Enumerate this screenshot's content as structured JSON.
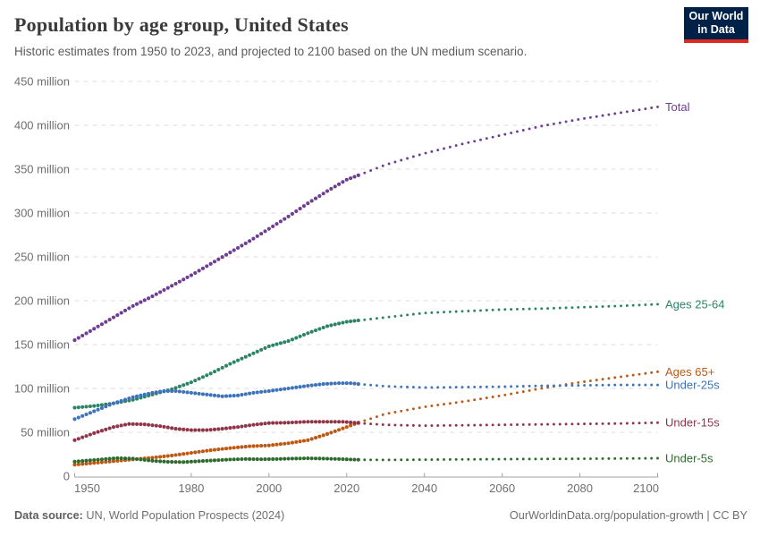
{
  "header": {
    "title": "Population by age group, United States",
    "subtitle": "Historic estimates from 1950 to 2023, and projected to 2100 based on the UN medium scenario."
  },
  "logo": {
    "line1": "Our World",
    "line2": "in Data",
    "bg_color": "#002147",
    "accent_color": "#dc2a20"
  },
  "footer": {
    "source_label": "Data source:",
    "source_value": " UN, World Population Prospects (2024)",
    "right_text": "OurWorldinData.org/population-growth | CC BY"
  },
  "colors": {
    "grid": "#dcdcdc",
    "axis": "#a3a3a3",
    "tick_text": "#6e6e6e"
  },
  "chart_data": {
    "type": "line",
    "title": "Population by age group, United States",
    "subtitle": "Historic estimates from 1950 to 2023, and projected to 2100 based on the UN medium scenario.",
    "unit": "million people",
    "x_range": [
      1950,
      2100
    ],
    "y_range": [
      0,
      450
    ],
    "x_ticks": [
      1950,
      1980,
      2000,
      2020,
      2040,
      2060,
      2080,
      2100
    ],
    "y_ticks": [
      0,
      50,
      100,
      150,
      200,
      250,
      300,
      350,
      400,
      450
    ],
    "y_tick_suffix": " million",
    "grid": true,
    "legend_position": "right-edge-labels",
    "projection_start_year": 2023,
    "line_style": {
      "historic": "dense-dots",
      "projection": "sparse-dots"
    },
    "series": [
      {
        "name": "Total",
        "color": "#6d3e91",
        "historic": [
          [
            1950,
            155
          ],
          [
            1955,
            168
          ],
          [
            1960,
            181
          ],
          [
            1965,
            194
          ],
          [
            1970,
            205
          ],
          [
            1975,
            217
          ],
          [
            1980,
            229
          ],
          [
            1985,
            242
          ],
          [
            1990,
            255
          ],
          [
            1995,
            268
          ],
          [
            2000,
            282
          ],
          [
            2005,
            296
          ],
          [
            2010,
            311
          ],
          [
            2015,
            325
          ],
          [
            2020,
            338
          ],
          [
            2023,
            343
          ]
        ],
        "projection": [
          [
            2023,
            343
          ],
          [
            2030,
            355
          ],
          [
            2040,
            368
          ],
          [
            2050,
            379
          ],
          [
            2060,
            389
          ],
          [
            2070,
            399
          ],
          [
            2080,
            407
          ],
          [
            2090,
            414
          ],
          [
            2100,
            421
          ]
        ]
      },
      {
        "name": "Ages 25-64",
        "color": "#2c8465",
        "historic": [
          [
            1950,
            78
          ],
          [
            1955,
            80
          ],
          [
            1960,
            83
          ],
          [
            1965,
            87
          ],
          [
            1970,
            93
          ],
          [
            1975,
            99
          ],
          [
            1980,
            107
          ],
          [
            1985,
            117
          ],
          [
            1990,
            128
          ],
          [
            1995,
            138
          ],
          [
            2000,
            148
          ],
          [
            2005,
            154
          ],
          [
            2010,
            163
          ],
          [
            2015,
            171
          ],
          [
            2020,
            176
          ],
          [
            2023,
            177.5
          ]
        ],
        "projection": [
          [
            2023,
            177.5
          ],
          [
            2030,
            181
          ],
          [
            2040,
            186
          ],
          [
            2050,
            188
          ],
          [
            2060,
            190
          ],
          [
            2070,
            191
          ],
          [
            2080,
            192.5
          ],
          [
            2090,
            194
          ],
          [
            2100,
            196
          ]
        ]
      },
      {
        "name": "Ages 65+",
        "color": "#be5915",
        "historic": [
          [
            1950,
            13
          ],
          [
            1955,
            15
          ],
          [
            1960,
            17
          ],
          [
            1965,
            19
          ],
          [
            1970,
            21
          ],
          [
            1975,
            23.5
          ],
          [
            1980,
            26.5
          ],
          [
            1985,
            29.5
          ],
          [
            1990,
            32
          ],
          [
            1995,
            34
          ],
          [
            2000,
            35
          ],
          [
            2005,
            37.5
          ],
          [
            2010,
            41
          ],
          [
            2015,
            48
          ],
          [
            2020,
            56
          ],
          [
            2023,
            61
          ]
        ],
        "projection": [
          [
            2023,
            61
          ],
          [
            2030,
            71
          ],
          [
            2040,
            79
          ],
          [
            2050,
            85
          ],
          [
            2060,
            92
          ],
          [
            2070,
            100
          ],
          [
            2080,
            107
          ],
          [
            2090,
            113
          ],
          [
            2100,
            119
          ]
        ]
      },
      {
        "name": "Under-25s",
        "color": "#3d73b8",
        "historic": [
          [
            1950,
            65
          ],
          [
            1955,
            74
          ],
          [
            1960,
            83
          ],
          [
            1965,
            90
          ],
          [
            1970,
            95
          ],
          [
            1973,
            97
          ],
          [
            1976,
            97
          ],
          [
            1980,
            95
          ],
          [
            1984,
            93
          ],
          [
            1988,
            91
          ],
          [
            1992,
            92
          ],
          [
            1996,
            95
          ],
          [
            2000,
            97
          ],
          [
            2005,
            100
          ],
          [
            2010,
            103
          ],
          [
            2014,
            105
          ],
          [
            2018,
            106
          ],
          [
            2021,
            106
          ],
          [
            2023,
            105
          ]
        ],
        "projection": [
          [
            2023,
            105
          ],
          [
            2030,
            102.5
          ],
          [
            2040,
            101
          ],
          [
            2050,
            101.5
          ],
          [
            2060,
            102
          ],
          [
            2070,
            103
          ],
          [
            2080,
            103.5
          ],
          [
            2090,
            104
          ],
          [
            2100,
            104
          ]
        ]
      },
      {
        "name": "Under-15s",
        "color": "#8f3449",
        "historic": [
          [
            1950,
            41
          ],
          [
            1955,
            49
          ],
          [
            1960,
            56
          ],
          [
            1964,
            59.5
          ],
          [
            1968,
            59
          ],
          [
            1972,
            57
          ],
          [
            1976,
            54
          ],
          [
            1980,
            52.5
          ],
          [
            1984,
            52.5
          ],
          [
            1988,
            54
          ],
          [
            1992,
            56
          ],
          [
            1996,
            58.5
          ],
          [
            2000,
            60.5
          ],
          [
            2005,
            61
          ],
          [
            2010,
            62
          ],
          [
            2015,
            62
          ],
          [
            2019,
            62
          ],
          [
            2023,
            60.5
          ]
        ],
        "projection": [
          [
            2023,
            60.5
          ],
          [
            2030,
            58.5
          ],
          [
            2040,
            57.5
          ],
          [
            2050,
            58
          ],
          [
            2060,
            58.5
          ],
          [
            2070,
            59
          ],
          [
            2080,
            59.5
          ],
          [
            2090,
            60
          ],
          [
            2100,
            61
          ]
        ]
      },
      {
        "name": "Under-5s",
        "color": "#2e6b2e",
        "historic": [
          [
            1950,
            16.5
          ],
          [
            1954,
            18
          ],
          [
            1958,
            19.5
          ],
          [
            1961,
            20.5
          ],
          [
            1965,
            20
          ],
          [
            1970,
            17.5
          ],
          [
            1974,
            16.3
          ],
          [
            1978,
            16
          ],
          [
            1982,
            17
          ],
          [
            1986,
            18
          ],
          [
            1990,
            19
          ],
          [
            1994,
            19.5
          ],
          [
            1998,
            19.2
          ],
          [
            2002,
            19.5
          ],
          [
            2006,
            20
          ],
          [
            2010,
            20.3
          ],
          [
            2014,
            20
          ],
          [
            2018,
            19.5
          ],
          [
            2021,
            19
          ],
          [
            2023,
            18.7
          ]
        ],
        "projection": [
          [
            2023,
            18.7
          ],
          [
            2030,
            18.5
          ],
          [
            2040,
            18.8
          ],
          [
            2050,
            19.1
          ],
          [
            2060,
            19.4
          ],
          [
            2070,
            19.6
          ],
          [
            2080,
            19.8
          ],
          [
            2090,
            20.1
          ],
          [
            2100,
            20.4
          ]
        ]
      }
    ]
  }
}
